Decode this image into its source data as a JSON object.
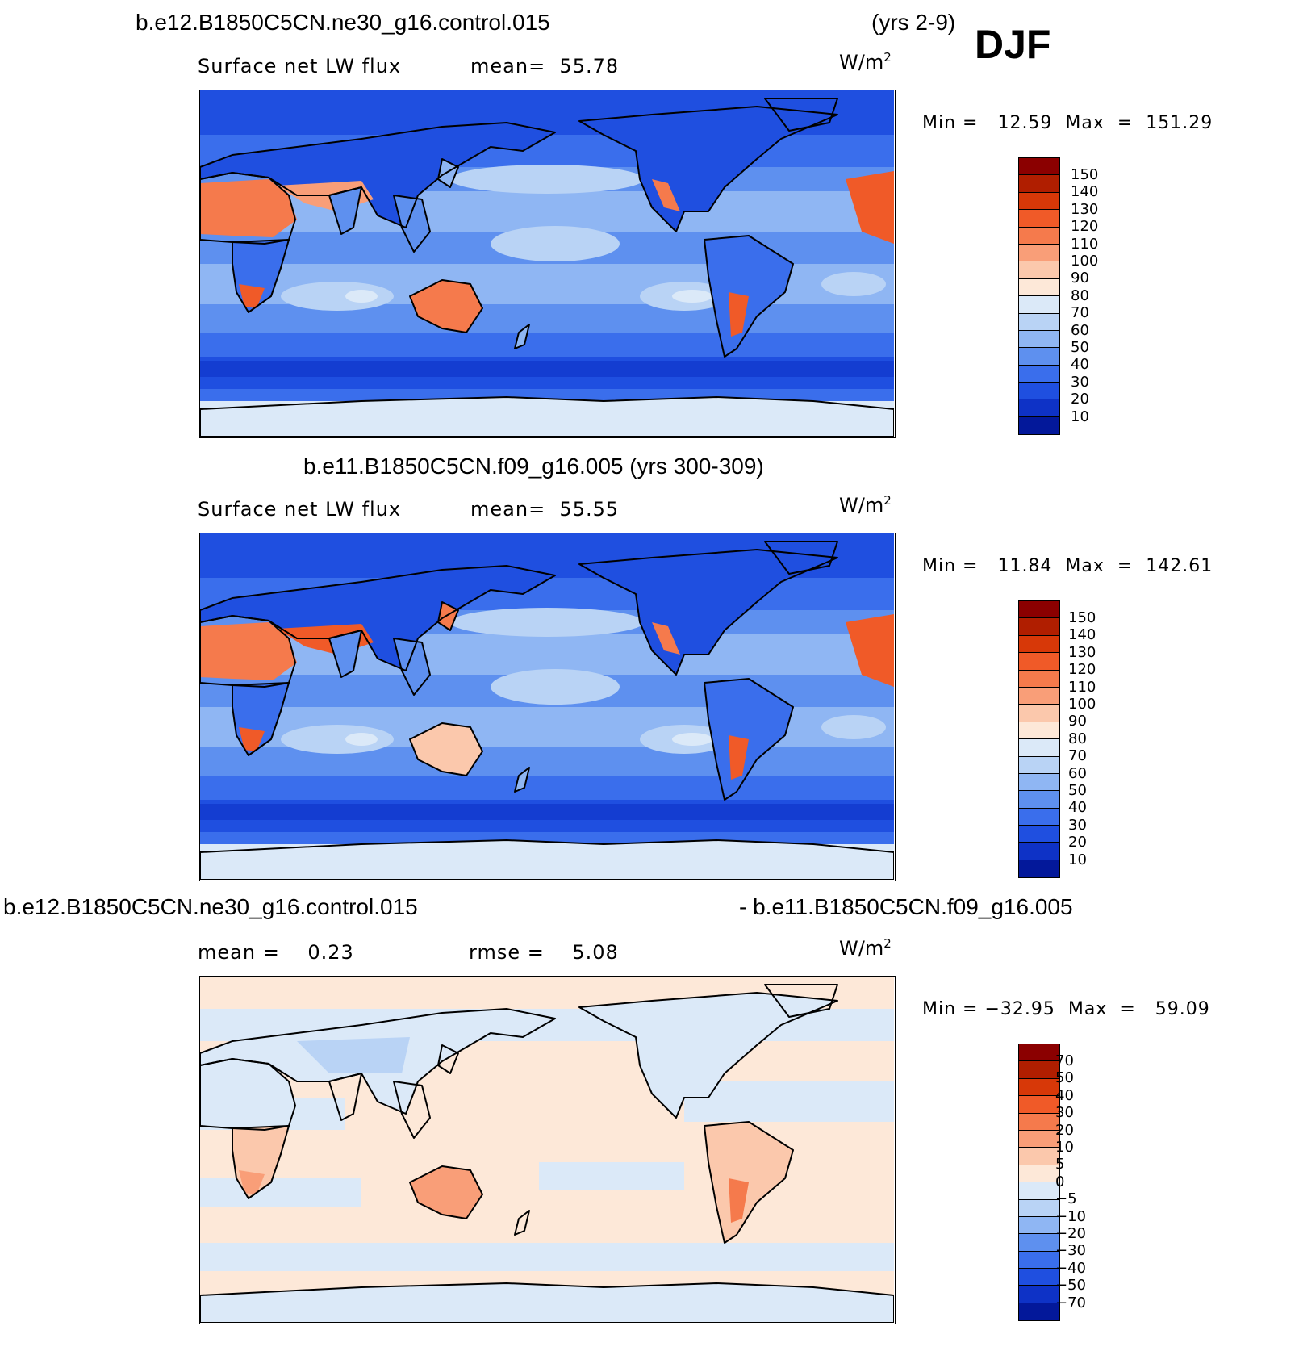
{
  "season": "DJF",
  "panels": [
    {
      "title_left": "b.e12.B1850C5CN.ne30_g16.control.015",
      "title_right": "(yrs 2-9)",
      "left_label": "Surface net LW flux",
      "center_label": "mean=  55.78",
      "units": "W/m",
      "units_sup": "2",
      "minmax": "Min =   12.59  Max  =  151.29",
      "colorbar_labels": [
        "150",
        "140",
        "130",
        "120",
        "110",
        "100",
        "90",
        "80",
        "70",
        "60",
        "50",
        "40",
        "30",
        "20",
        "10"
      ],
      "variant": "abs1"
    },
    {
      "title_center": "b.e11.B1850C5CN.f09_g16.005 (yrs 300-309)",
      "left_label": "Surface net LW flux",
      "center_label": "mean=  55.55",
      "units": "W/m",
      "units_sup": "2",
      "minmax": "Min =   11.84  Max  =  142.61",
      "colorbar_labels": [
        "150",
        "140",
        "130",
        "120",
        "110",
        "100",
        "90",
        "80",
        "70",
        "60",
        "50",
        "40",
        "30",
        "20",
        "10"
      ],
      "variant": "abs2"
    },
    {
      "title_left": "b.e12.B1850C5CN.ne30_g16.control.015",
      "title_right": "- b.e11.B1850C5CN.f09_g16.005",
      "left_label": "mean =    0.23",
      "center_label": "rmse =    5.08",
      "units": "W/m",
      "units_sup": "2",
      "minmax": "Min = −32.95  Max  =   59.09",
      "colorbar_labels": [
        "70",
        "50",
        "40",
        "30",
        "20",
        "10",
        "5",
        "0",
        "−5",
        "−10",
        "−20",
        "−30",
        "−40",
        "−50",
        "−70"
      ],
      "variant": "diff"
    }
  ],
  "colors": {
    "abs_scale": [
      "#8b0000",
      "#b01e00",
      "#d73808",
      "#f05a28",
      "#f57a4c",
      "#f99e78",
      "#fbc8ac",
      "#fde8d8",
      "#dbe9f8",
      "#b9d3f5",
      "#8fb6f3",
      "#5e90ef",
      "#3a6eec",
      "#1f4fe0",
      "#0e32c6",
      "#03189a"
    ],
    "diff_scale": [
      "#8b0000",
      "#b01e00",
      "#d73808",
      "#f05a28",
      "#f57a4c",
      "#f99e78",
      "#fbc8ac",
      "#fde8d8",
      "#dbe9f8",
      "#b9d3f5",
      "#8fb6f3",
      "#5e90ef",
      "#3a6eec",
      "#1f4fe0",
      "#0e32c6",
      "#03189a"
    ]
  }
}
